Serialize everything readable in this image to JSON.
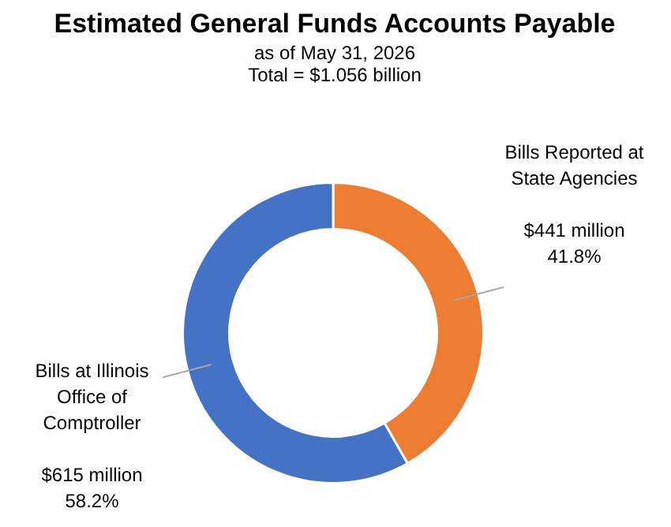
{
  "chart_data": {
    "type": "donut",
    "title": "Estimated General Funds Accounts Payable",
    "subtitle": "as of May 31, 2026",
    "annotations": [
      "Total = $1.056 billion",
      {
        "text": "41.8%",
        "x": "Bills Reported at State Agencies"
      },
      {
        "text": "58.2%",
        "x": "Bills at Illinois Office of Comptroller"
      }
    ],
    "categories": [
      "Bills Reported at State Agencies",
      "Bills at Illinois Office of Comptroller"
    ],
    "values": [
      441,
      615
    ],
    "value_labels": [
      "$441 million",
      "$615 million"
    ],
    "colors": [
      "#ed7d31",
      "#4472c4"
    ],
    "legend": false
  }
}
